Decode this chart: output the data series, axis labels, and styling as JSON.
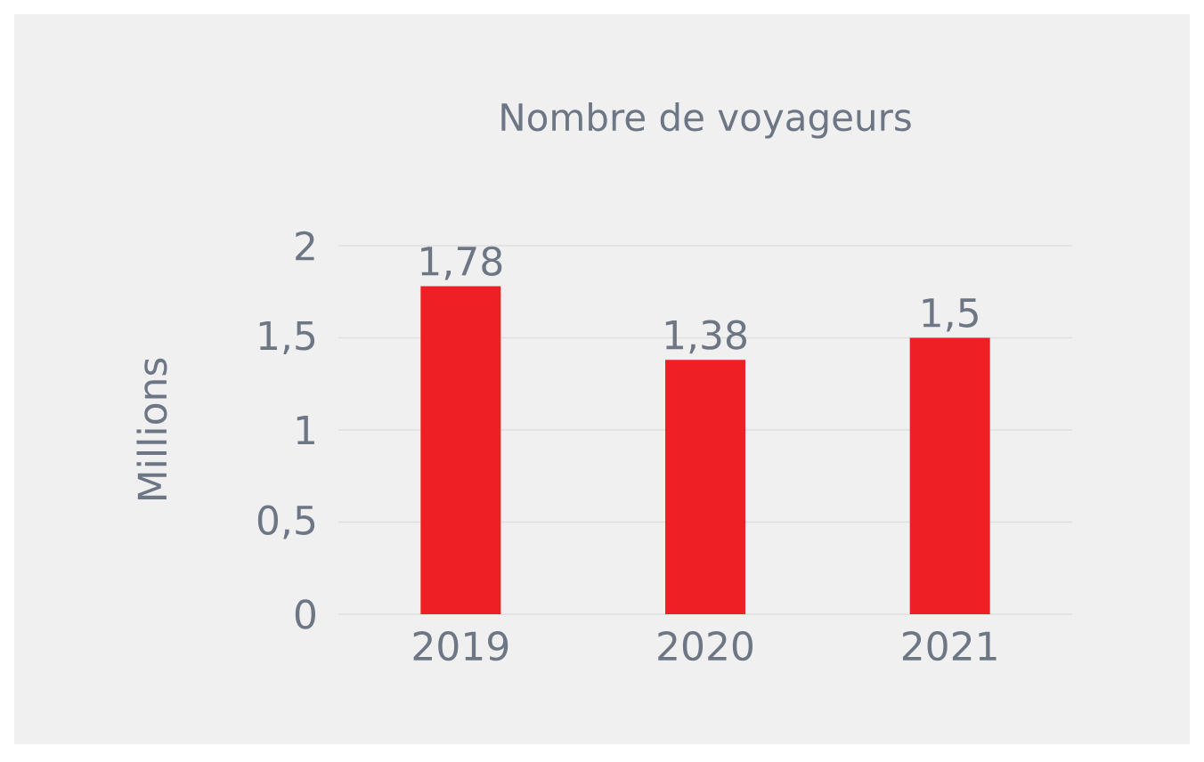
{
  "chart_data": {
    "type": "bar",
    "title": "Nombre de voyageurs",
    "ylabel": "Millions",
    "categories": [
      "2019",
      "2020",
      "2021"
    ],
    "values": [
      1.78,
      1.38,
      1.5
    ],
    "value_labels": [
      "1,78",
      "1,38",
      "1,5"
    ],
    "color": "#ee1f25",
    "ylim": [
      0,
      2
    ],
    "yticks": [
      0,
      {
        "value": 0.5,
        "label": "0,5"
      },
      1,
      {
        "value": 1.5,
        "label": "1,5"
      },
      2
    ],
    "grid": "y"
  }
}
